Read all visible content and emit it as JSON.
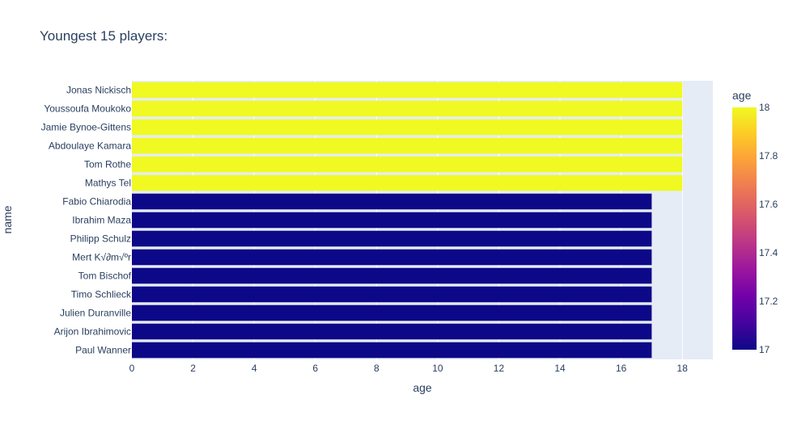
{
  "chart_data": {
    "type": "bar",
    "orientation": "horizontal",
    "title": "Youngest 15 players:",
    "xlabel": "age",
    "ylabel": "name",
    "xlim": [
      0,
      19
    ],
    "x_ticks": [
      0,
      2,
      4,
      6,
      8,
      10,
      12,
      14,
      16,
      18
    ],
    "grid": true,
    "categories": [
      "Jonas Nickisch",
      "Youssoufa Moukoko",
      "Jamie Bynoe-Gittens",
      "Abdoulaye Kamara",
      "Tom Rothe",
      "Mathys Tel",
      "Fabio Chiarodia",
      "Ibrahim Maza",
      "Philipp Schulz",
      "Mert K√∂m√ºr",
      "Tom Bischof",
      "Timo Schlieck",
      "Julien Duranville",
      "Arijon Ibrahimovic",
      "Paul Wanner"
    ],
    "values": [
      18,
      18,
      18,
      18,
      18,
      18,
      17,
      17,
      17,
      17,
      17,
      17,
      17,
      17,
      17
    ],
    "colorbar": {
      "title": "age",
      "range": [
        17,
        18
      ],
      "ticks": [
        17,
        17.2,
        17.4,
        17.6,
        17.8,
        18
      ],
      "colors": [
        "#0d0887",
        "#46039f",
        "#7201a8",
        "#9c179e",
        "#bd3786",
        "#d8576b",
        "#ed7953",
        "#fb9f3a",
        "#fdca26",
        "#f0f921"
      ]
    },
    "plot_bgcolor": "#e5ecf6"
  }
}
